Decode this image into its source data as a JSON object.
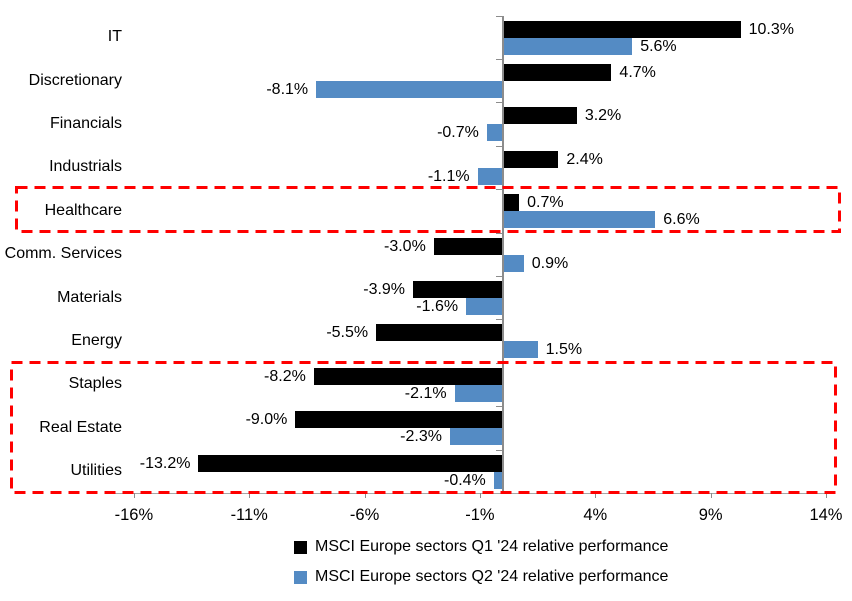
{
  "chart_data": {
    "type": "bar",
    "orientation": "horizontal",
    "title": "",
    "categories": [
      "IT",
      "Discretionary",
      "Financials",
      "Industrials",
      "Healthcare",
      "Comm. Services",
      "Materials",
      "Energy",
      "Staples",
      "Real Estate",
      "Utilities"
    ],
    "series": [
      {
        "name": "MSCI Europe sectors Q1 '24 relative performance",
        "color": "#000000",
        "values": [
          10.3,
          4.7,
          3.2,
          2.4,
          0.7,
          -3.0,
          -3.9,
          -5.5,
          -8.2,
          -9.0,
          -13.2
        ],
        "labels": [
          "10.3%",
          "4.7%",
          "3.2%",
          "2.4%",
          "0.7%",
          "-3.0%",
          "-3.9%",
          "-5.5%",
          "-8.2%",
          "-9.0%",
          "-13.2%"
        ]
      },
      {
        "name": "MSCI Europe sectors Q2 '24 relative performance",
        "color": "#548BC4",
        "values": [
          5.6,
          -8.1,
          -0.7,
          -1.1,
          6.6,
          0.9,
          -1.6,
          1.5,
          -2.1,
          -2.3,
          -0.4
        ],
        "labels": [
          "5.6%",
          "-8.1%",
          "-0.7%",
          "-1.1%",
          "6.6%",
          "0.9%",
          "-1.6%",
          "1.5%",
          "-2.1%",
          "-2.3%",
          "-0.4%"
        ]
      }
    ],
    "x_axis": {
      "min": -17.1,
      "max": 14,
      "ticks": [
        -16,
        -11,
        -6,
        -1,
        4,
        9,
        14
      ],
      "tick_labels": [
        "-16%",
        "-11%",
        "-6%",
        "-1%",
        "4%",
        "9%",
        "14%"
      ]
    },
    "legend_position": "bottom",
    "grid": false,
    "highlights": [
      {
        "categories": [
          "Healthcare"
        ],
        "color": "#FF0000",
        "style": "dashed"
      },
      {
        "categories": [
          "Staples",
          "Real Estate",
          "Utilities"
        ],
        "color": "#FF0000",
        "style": "dashed"
      }
    ]
  },
  "colors": {
    "q1_bar": "#000000",
    "q2_bar": "#548BC4",
    "highlight_box": "#FF0000",
    "axis_line": "#a6a6a6",
    "zero_line": "#8c8c8c",
    "text": "#000000",
    "background": "#ffffff"
  }
}
